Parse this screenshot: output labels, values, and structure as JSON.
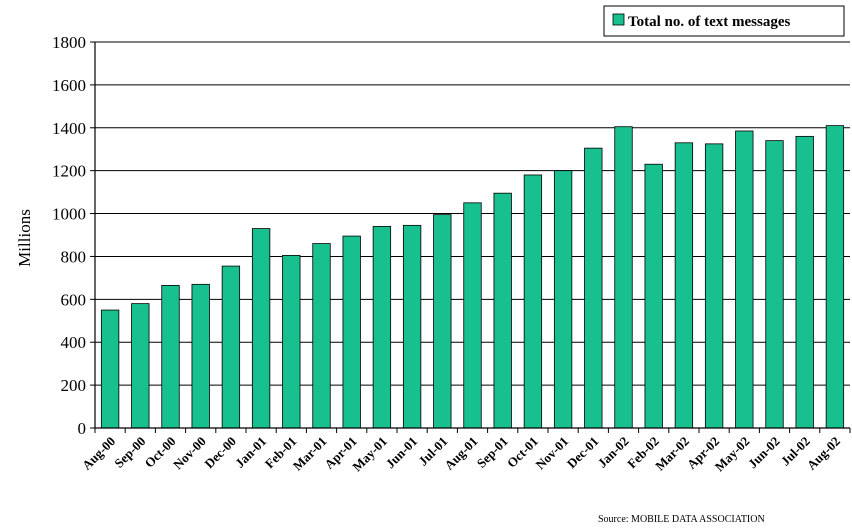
{
  "chart_data": {
    "type": "bar",
    "title": "",
    "xlabel": "",
    "ylabel": "Millions",
    "ylim": [
      0,
      1800
    ],
    "yticks": [
      0,
      200,
      400,
      600,
      800,
      1000,
      1200,
      1400,
      1600,
      1800
    ],
    "grid": true,
    "legend_position": "top-right",
    "categories": [
      "Aug-00",
      "Sep-00",
      "Oct-00",
      "Nov-00",
      "Dec-00",
      "Jan-01",
      "Feb-01",
      "Mar-01",
      "Apr-01",
      "May-01",
      "Jun-01",
      "Jul-01",
      "Aug-01",
      "Sep-01",
      "Oct-01",
      "Nov-01",
      "Dec-01",
      "Jan-02",
      "Feb-02",
      "Mar-02",
      "Apr-02",
      "May-02",
      "Jun-02",
      "Jul-02",
      "Aug-02"
    ],
    "series": [
      {
        "name": "Total no. of text messages",
        "color": "#18C08F",
        "values": [
          550,
          580,
          665,
          670,
          755,
          930,
          805,
          860,
          895,
          940,
          945,
          995,
          1050,
          1095,
          1180,
          1200,
          1305,
          1405,
          1230,
          1330,
          1325,
          1385,
          1340,
          1360,
          1410
        ]
      }
    ],
    "source": "Source:  MOBILE DATA ASSOCIATION"
  }
}
